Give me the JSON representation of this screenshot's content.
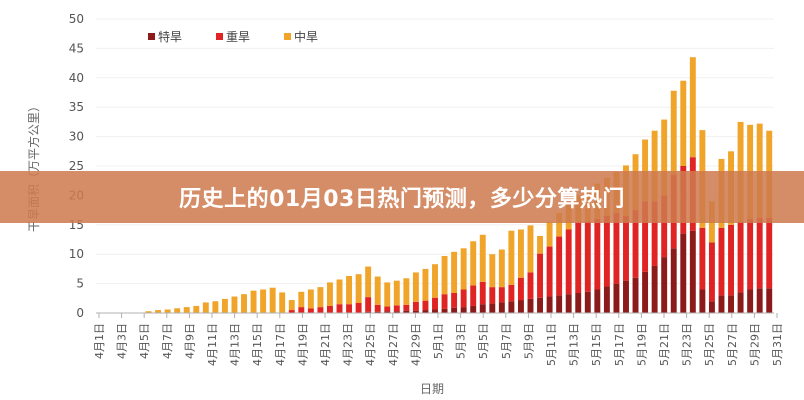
{
  "banner": {
    "text": "历史上的01月03日热门预测，多少分算热门"
  },
  "colors": {
    "extreme": "#8b1a1a",
    "severe": "#e02424",
    "moderate": "#f0a429",
    "axis": "#b0b0b0"
  },
  "chart_data": {
    "type": "bar",
    "stacked": true,
    "xlabel": "日期",
    "ylabel": "干旱面积（万平方公里）",
    "ylim": [
      0,
      50
    ],
    "yticks": [
      0,
      5,
      10,
      15,
      20,
      25,
      30,
      35,
      40,
      45,
      50
    ],
    "legend_position": "top-left",
    "tick_labels": [
      "4月1日",
      "4月3日",
      "4月5日",
      "4月7日",
      "4月9日",
      "4月11日",
      "4月13日",
      "4月15日",
      "4月17日",
      "4月19日",
      "4月21日",
      "4月23日",
      "4月25日",
      "4月27日",
      "4月29日",
      "5月1日",
      "5月3日",
      "5月5日",
      "5月7日",
      "5月9日",
      "5月11日",
      "5月13日",
      "5月15日",
      "5月17日",
      "5月19日",
      "5月21日",
      "5月23日",
      "5月25日",
      "5月27日",
      "5月29日",
      "5月31日"
    ],
    "series": [
      {
        "name": "特旱",
        "values": [
          0,
          0,
          0,
          0,
          0,
          0,
          0,
          0,
          0,
          0,
          0,
          0,
          0,
          0,
          0,
          0,
          0,
          0,
          0,
          0,
          0,
          0,
          0,
          0,
          0,
          0,
          0,
          0,
          0.2,
          0.2,
          0.3,
          0.3,
          0.4,
          0.4,
          0.5,
          0.6,
          0.7,
          0.9,
          1.0,
          1.2,
          1.5,
          1.6,
          1.8,
          2.0,
          2.2,
          2.4,
          2.6,
          2.8,
          3.0,
          3.2,
          3.4,
          3.6,
          4.0,
          4.5,
          5.0,
          5.5,
          6.0,
          7.0,
          8.0,
          9.5,
          11.0,
          13.5,
          14.0,
          4.0,
          2.0,
          3.0,
          3.0,
          3.5,
          4.0,
          4.2,
          4.2
        ]
      },
      {
        "name": "重旱",
        "values": [
          0,
          0,
          0,
          0,
          0,
          0,
          0,
          0,
          0,
          0,
          0,
          0,
          0,
          0,
          0,
          0,
          0,
          0,
          0,
          0,
          0.5,
          1.0,
          0.8,
          1.0,
          1.2,
          1.5,
          1.5,
          1.7,
          2.5,
          1.2,
          0.8,
          1.0,
          1.0,
          1.5,
          1.6,
          2.0,
          2.5,
          2.5,
          3.0,
          3.5,
          3.8,
          2.8,
          2.6,
          2.8,
          3.8,
          4.5,
          7.5,
          8.5,
          10.0,
          11.0,
          12.0,
          12.0,
          12.0,
          12.0,
          12.0,
          11.0,
          11.5,
          12.0,
          11.0,
          10.5,
          12.5,
          11.5,
          12.5,
          10.5,
          10.0,
          11.5,
          12.0,
          12.0,
          12.0,
          12.0,
          12.0
        ]
      },
      {
        "name": "中旱",
        "values": [
          0,
          0,
          0,
          0,
          0,
          0.3,
          0.5,
          0.6,
          0.8,
          1.0,
          1.2,
          1.8,
          2.0,
          2.4,
          2.8,
          3.2,
          3.8,
          4.0,
          4.3,
          3.5,
          1.7,
          2.6,
          3.2,
          3.4,
          4.0,
          4.2,
          4.8,
          4.9,
          5.2,
          4.8,
          4.1,
          4.2,
          4.5,
          5.0,
          5.4,
          5.7,
          6.5,
          7.0,
          7.0,
          7.5,
          8.0,
          5.6,
          6.4,
          9.2,
          8.2,
          8.0,
          3.0,
          4.2,
          4.0,
          4.2,
          4.6,
          5.2,
          6.0,
          6.5,
          7.0,
          8.6,
          9.5,
          10.5,
          12.0,
          12.9,
          14.3,
          14.5,
          17.0,
          16.6,
          7.0,
          11.7,
          12.5,
          17.0,
          16.0,
          16.0,
          14.8
        ]
      }
    ]
  }
}
